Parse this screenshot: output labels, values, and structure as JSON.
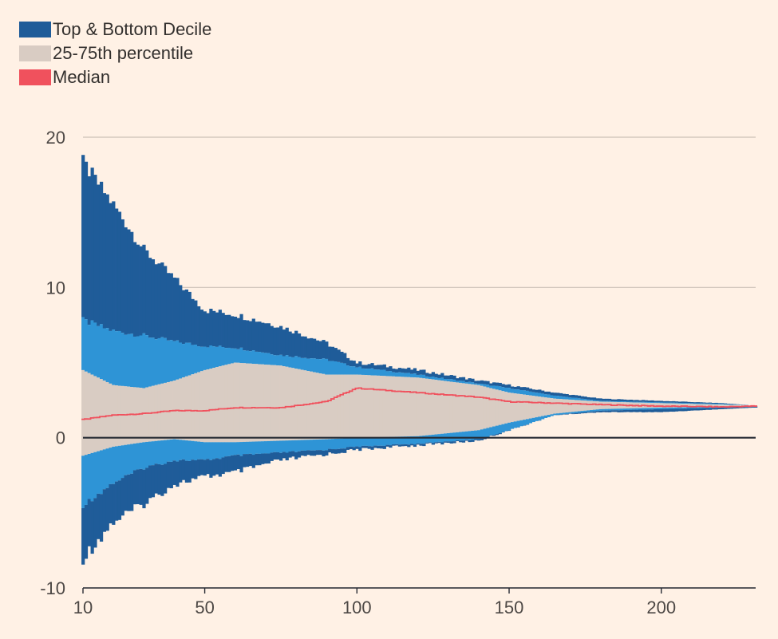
{
  "chart_data": {
    "type": "bar",
    "title": "",
    "xlabel": "",
    "ylabel": "",
    "xlim": [
      10,
      231
    ],
    "ylim": [
      -10,
      20
    ],
    "x_ticks": [
      "10",
      "50",
      "100",
      "150",
      "200"
    ],
    "y_ticks": [
      "20",
      "10",
      "0",
      "-10"
    ],
    "legend_position": "top-left",
    "series": [
      {
        "name": "Top & Bottom Decile",
        "color": "#1F5C99"
      },
      {
        "name": "25-75th percentile",
        "color": "#D9CCC3"
      },
      {
        "name": "Median",
        "color": "#F0515D"
      }
    ],
    "band_colors": {
      "decile": "#1F5C99",
      "inner": "#2E94D6",
      "iqr": "#D9CCC3",
      "median": "#F0515D",
      "zero_line": "#262A33",
      "grid": "#CCC1B7"
    },
    "x_knots": [
      10,
      20,
      30,
      40,
      50,
      60,
      75,
      90,
      100,
      120,
      140,
      150,
      165,
      180,
      200,
      220,
      230
    ],
    "top_decile": [
      18.3,
      15.5,
      12.5,
      10.6,
      8.5,
      8.2,
      7.4,
      6.3,
      5.0,
      4.5,
      3.8,
      3.5,
      3.0,
      2.6,
      2.45,
      2.3,
      2.15
    ],
    "p90": [
      7.8,
      7.1,
      6.8,
      6.4,
      6.1,
      6.0,
      5.5,
      5.2,
      4.7,
      4.2,
      3.6,
      3.3,
      2.8,
      2.45,
      2.35,
      2.25,
      2.15
    ],
    "q75": [
      4.5,
      3.5,
      3.3,
      3.8,
      4.5,
      5.0,
      4.8,
      4.2,
      4.2,
      4.0,
      3.5,
      3.0,
      2.6,
      2.4,
      2.3,
      2.2,
      2.15
    ],
    "median": [
      1.2,
      1.5,
      1.6,
      1.8,
      1.8,
      2.0,
      2.0,
      2.4,
      3.3,
      3.0,
      2.7,
      2.4,
      2.3,
      2.2,
      2.1,
      2.05,
      2.1
    ],
    "q25": [
      -1.2,
      -0.6,
      -0.3,
      -0.1,
      -0.3,
      -0.3,
      -0.2,
      -0.1,
      0.0,
      0.1,
      0.5,
      1.0,
      1.6,
      1.9,
      2.0,
      2.05,
      2.1
    ],
    "p10": [
      -4.5,
      -3.0,
      -2.0,
      -1.5,
      -1.5,
      -1.2,
      -1.0,
      -0.8,
      -0.6,
      -0.4,
      -0.1,
      0.5,
      1.5,
      1.8,
      1.9,
      2.0,
      2.05
    ],
    "bottom_decile": [
      -8.0,
      -5.6,
      -4.4,
      -3.1,
      -2.6,
      -2.3,
      -1.5,
      -1.1,
      -0.8,
      -0.5,
      -0.2,
      0.5,
      1.5,
      1.7,
      1.7,
      1.9,
      2.0
    ]
  }
}
